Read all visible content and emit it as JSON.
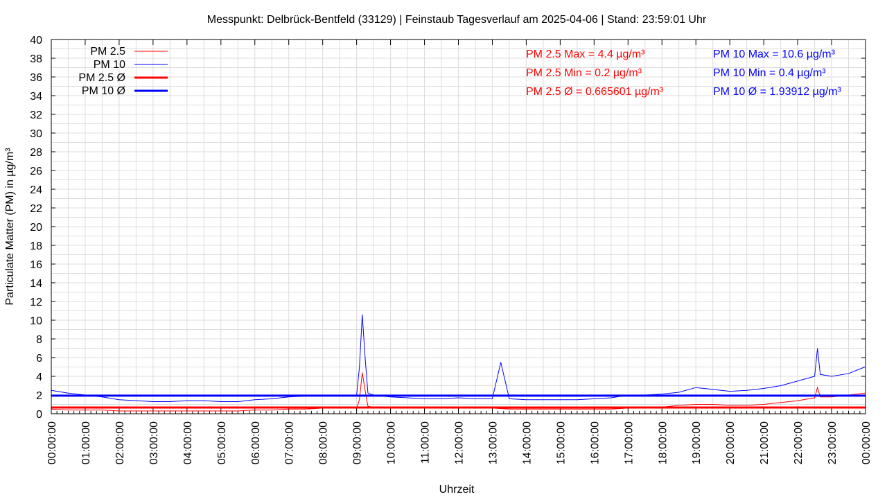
{
  "chart_data": {
    "type": "line",
    "title": "Messpunkt: Delbrück-Bentfeld (33129) | Feinstaub Tagesverlauf am 2025-04-06 | Stand: 23:59:01 Uhr",
    "xlabel": "Uhrzeit",
    "ylabel": "Particulate Matter (PM) in µg/m³",
    "xlim": [
      "00:00:00",
      "24:00:00"
    ],
    "ylim": [
      0,
      40
    ],
    "grid": true,
    "legend_position": "top-left",
    "x_tick_labels": [
      "00:00:00",
      "01:00:00",
      "02:00:00",
      "03:00:00",
      "04:00:00",
      "05:00:00",
      "06:00:00",
      "07:00:00",
      "08:00:00",
      "09:00:00",
      "10:00:00",
      "11:00:00",
      "12:00:00",
      "13:00:00",
      "14:00:00",
      "15:00:00",
      "16:00:00",
      "17:00:00",
      "18:00:00",
      "19:00:00",
      "20:00:00",
      "21:00:00",
      "22:00:00",
      "23:00:00",
      "00:00:00"
    ],
    "y_tick_labels": [
      "0",
      "2",
      "4",
      "6",
      "8",
      "10",
      "12",
      "14",
      "16",
      "18",
      "20",
      "22",
      "24",
      "26",
      "28",
      "30",
      "32",
      "34",
      "36",
      "38",
      "40"
    ],
    "series": [
      {
        "name": "PM 2.5",
        "color": "#ff0000",
        "x": [
          "00:00",
          "00:30",
          "01:00",
          "01:30",
          "02:00",
          "02:30",
          "03:00",
          "03:30",
          "04:00",
          "04:30",
          "05:00",
          "05:30",
          "06:00",
          "06:30",
          "07:00",
          "07:30",
          "08:00",
          "08:30",
          "09:00",
          "09:05",
          "09:10",
          "09:15",
          "09:20",
          "09:30",
          "10:00",
          "10:30",
          "11:00",
          "11:30",
          "12:00",
          "12:30",
          "13:00",
          "13:30",
          "14:00",
          "14:30",
          "15:00",
          "15:30",
          "16:00",
          "16:30",
          "17:00",
          "17:30",
          "18:00",
          "18:30",
          "19:00",
          "19:30",
          "20:00",
          "20:30",
          "21:00",
          "21:30",
          "22:00",
          "22:30",
          "22:35",
          "22:40",
          "23:00",
          "23:30",
          "23:59"
        ],
        "y": [
          0.5,
          0.4,
          0.4,
          0.4,
          0.3,
          0.3,
          0.3,
          0.3,
          0.3,
          0.3,
          0.3,
          0.3,
          0.4,
          0.4,
          0.5,
          0.5,
          0.6,
          0.6,
          0.6,
          1.5,
          4.4,
          2.5,
          0.8,
          0.7,
          0.6,
          0.6,
          0.6,
          0.6,
          0.6,
          0.6,
          0.6,
          0.5,
          0.5,
          0.5,
          0.5,
          0.5,
          0.5,
          0.5,
          0.6,
          0.6,
          0.7,
          0.9,
          1.0,
          1.0,
          0.9,
          0.9,
          1.0,
          1.2,
          1.4,
          1.7,
          2.8,
          1.8,
          1.8,
          2.0,
          2.2
        ]
      },
      {
        "name": "PM 10",
        "color": "#0000ff",
        "x": [
          "00:00",
          "00:30",
          "01:00",
          "01:30",
          "02:00",
          "02:30",
          "03:00",
          "03:30",
          "04:00",
          "04:30",
          "05:00",
          "05:30",
          "06:00",
          "06:30",
          "07:00",
          "07:30",
          "08:00",
          "08:30",
          "09:00",
          "09:05",
          "09:10",
          "09:15",
          "09:20",
          "09:30",
          "10:00",
          "10:30",
          "11:00",
          "11:30",
          "12:00",
          "12:30",
          "13:00",
          "13:15",
          "13:30",
          "14:00",
          "14:30",
          "15:00",
          "15:30",
          "16:00",
          "16:30",
          "17:00",
          "17:30",
          "18:00",
          "18:30",
          "19:00",
          "19:30",
          "20:00",
          "20:30",
          "21:00",
          "21:30",
          "22:00",
          "22:30",
          "22:35",
          "22:40",
          "23:00",
          "23:30",
          "23:59"
        ],
        "y": [
          2.5,
          2.2,
          2.0,
          1.8,
          1.5,
          1.4,
          1.3,
          1.3,
          1.4,
          1.4,
          1.3,
          1.3,
          1.5,
          1.6,
          1.8,
          1.9,
          2.0,
          2.0,
          2.0,
          5.0,
          10.6,
          6.0,
          2.2,
          2.0,
          1.8,
          1.7,
          1.6,
          1.6,
          1.7,
          1.6,
          1.6,
          5.5,
          1.6,
          1.5,
          1.5,
          1.5,
          1.5,
          1.6,
          1.7,
          2.0,
          2.0,
          2.1,
          2.3,
          2.8,
          2.6,
          2.4,
          2.5,
          2.7,
          3.0,
          3.5,
          4.0,
          7.0,
          4.2,
          4.0,
          4.3,
          5.0
        ]
      }
    ],
    "averages": [
      {
        "name": "PM 2.5 Ø",
        "value": 0.665601,
        "color": "#ff0000"
      },
      {
        "name": "PM 10 Ø",
        "value": 1.93912,
        "color": "#0000ff"
      }
    ]
  },
  "stats": {
    "pm25": {
      "max": "PM 2.5 Max = 4.4 µg/m³",
      "min": "PM 2.5 Min = 0.2 µg/m³",
      "avg": "PM 2.5 Ø = 0.665601 µg/m³",
      "color": "#ff0000"
    },
    "pm10": {
      "max": "PM 10 Max = 10.6 µg/m³",
      "min": "PM 10 Min = 0.4 µg/m³",
      "avg": "PM 10 Ø = 1.93912 µg/m³",
      "color": "#0000ff"
    }
  }
}
